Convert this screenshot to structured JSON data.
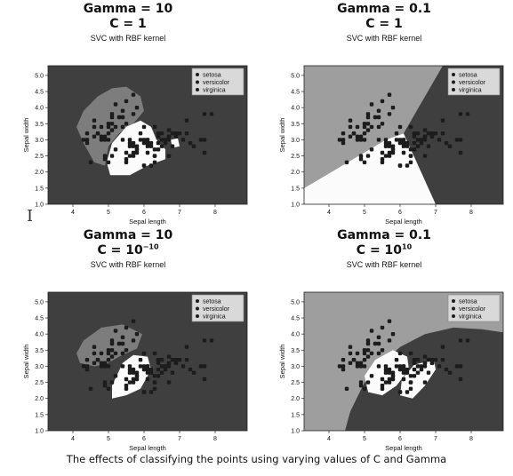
{
  "caption": "The effects of classifying the points using varying values of C and Gamma",
  "colors": {
    "plot_dark": "#3f3f3f",
    "region_mid": "#7d7d7d",
    "region_light": "#9e9e9e",
    "region_white": "#fbfbfb",
    "point": "#1c1c1c",
    "legend_bg": "#d9d9d9"
  },
  "panels": [
    {
      "line1": "Gamma = 10",
      "line2_base": "C = 1",
      "line2_sup": "",
      "subtitle": "SVC with RBF kernel",
      "variant": "g10_c1"
    },
    {
      "line1": "Gamma = 0.1",
      "line2_base": "C = 1",
      "line2_sup": "",
      "subtitle": "SVC with RBF kernel",
      "variant": "g01_c1"
    },
    {
      "line1": "Gamma = 10",
      "line2_base": "C = 10",
      "line2_sup": "−10",
      "subtitle": "SVC with RBF kernel",
      "variant": "g10_cm10"
    },
    {
      "line1": "Gamma = 0.1",
      "line2_base": "C = 10",
      "line2_sup": "10",
      "subtitle": "SVC with RBF kernel",
      "variant": "g01_c10"
    }
  ],
  "chart_data": [
    {
      "type": "scatter",
      "title": "SVC with RBF kernel",
      "xlabel": "Sepal length",
      "ylabel": "Sepal width",
      "xlim": [
        3.3,
        8.9
      ],
      "ylim": [
        1.0,
        5.3
      ],
      "xticks": [
        "4",
        "5",
        "6",
        "7",
        "8"
      ],
      "yticks": [
        "1.0",
        "1.5",
        "2.0",
        "2.5",
        "3.0",
        "3.5",
        "4.0",
        "4.5",
        "5.0"
      ],
      "legend": [
        "setosa",
        "versicolor",
        "virginica"
      ],
      "legend_position": "top-right",
      "grid": false,
      "series": [
        {
          "name": "setosa",
          "x": [
            4.3,
            4.4,
            4.4,
            4.4,
            4.5,
            4.6,
            4.6,
            4.6,
            4.7,
            4.7,
            4.8,
            4.8,
            4.8,
            4.9,
            4.9,
            5.0,
            5.0,
            5.0,
            5.0,
            5.1,
            5.1,
            5.1,
            5.1,
            5.2,
            5.2,
            5.3,
            5.4,
            5.4,
            5.4,
            5.5,
            5.5,
            5.7,
            5.7,
            5.8
          ],
          "y": [
            3.0,
            2.9,
            3.0,
            3.2,
            2.3,
            3.1,
            3.4,
            3.6,
            3.2,
            3.2,
            3.0,
            3.1,
            3.4,
            3.0,
            3.1,
            3.0,
            3.2,
            3.4,
            3.5,
            3.3,
            3.5,
            3.7,
            3.8,
            3.4,
            4.1,
            3.7,
            3.4,
            3.7,
            3.9,
            3.5,
            4.2,
            3.8,
            4.4,
            4.0
          ]
        },
        {
          "name": "versicolor",
          "x": [
            4.9,
            5.0,
            5.1,
            5.2,
            5.4,
            5.5,
            5.5,
            5.5,
            5.6,
            5.6,
            5.6,
            5.7,
            5.7,
            5.7,
            5.8,
            5.8,
            5.9,
            5.9,
            6.0,
            6.0,
            6.0,
            6.1,
            6.1,
            6.1,
            6.2,
            6.2,
            6.3,
            6.3,
            6.4,
            6.4,
            6.5,
            6.6,
            6.6,
            6.7,
            6.7,
            6.8,
            6.9,
            7.0
          ],
          "y": [
            2.4,
            2.3,
            2.5,
            2.7,
            3.0,
            2.3,
            2.4,
            2.6,
            2.5,
            2.9,
            3.0,
            2.6,
            2.8,
            2.9,
            2.7,
            2.6,
            3.0,
            3.2,
            2.2,
            2.9,
            3.4,
            2.8,
            2.9,
            3.0,
            2.2,
            2.9,
            2.3,
            2.5,
            2.9,
            3.2,
            2.8,
            2.9,
            3.0,
            3.0,
            3.1,
            2.8,
            3.1,
            3.2
          ]
        },
        {
          "name": "virginica",
          "x": [
            4.9,
            5.6,
            5.7,
            5.8,
            5.8,
            6.0,
            6.0,
            6.1,
            6.1,
            6.2,
            6.3,
            6.3,
            6.3,
            6.4,
            6.4,
            6.4,
            6.5,
            6.5,
            6.7,
            6.7,
            6.7,
            6.8,
            6.9,
            6.9,
            7.1,
            7.2,
            7.2,
            7.3,
            7.4,
            7.6,
            7.7,
            7.7,
            7.7,
            7.9
          ],
          "y": [
            2.5,
            2.8,
            2.5,
            2.7,
            2.8,
            2.2,
            3.0,
            2.6,
            3.0,
            2.8,
            2.5,
            2.7,
            3.4,
            2.7,
            3.1,
            3.2,
            3.0,
            3.2,
            2.5,
            3.1,
            3.3,
            3.2,
            3.1,
            3.2,
            3.0,
            3.2,
            3.6,
            2.9,
            2.8,
            3.0,
            2.6,
            3.0,
            3.8,
            3.8
          ]
        }
      ]
    }
  ]
}
